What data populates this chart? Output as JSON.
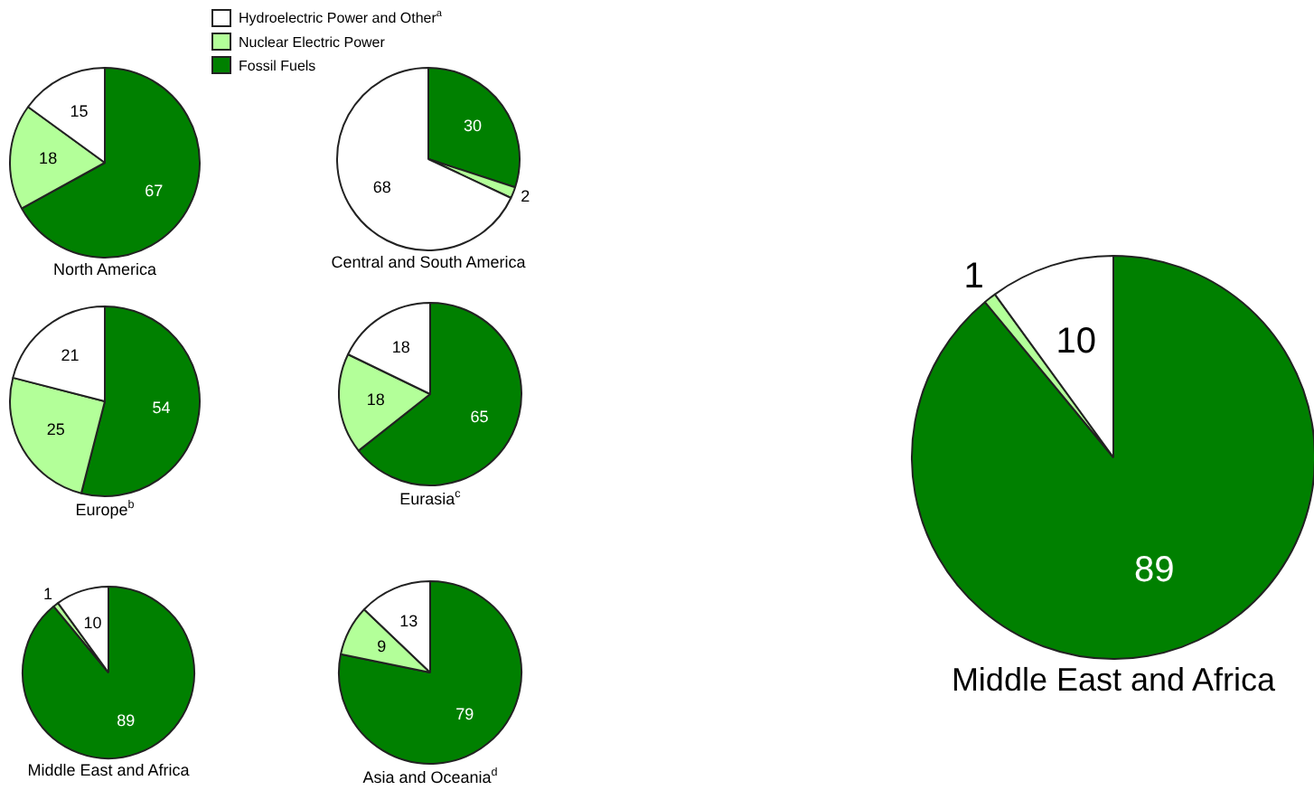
{
  "chart_data": [
    {
      "type": "pie",
      "title": "North America",
      "categories": [
        "Fossil Fuels",
        "Nuclear Electric Power",
        "Hydroelectric Power and Other$^{a}$"
      ],
      "values": [
        67,
        18,
        15
      ],
      "colors": [
        "#008000",
        "#b3ff99",
        "#ffffff"
      ],
      "data_labels": true,
      "legend": "top"
    },
    {
      "type": "pie",
      "title": "Central and South America",
      "categories": [
        null,
        null,
        null
      ],
      "values": [
        30,
        2,
        68
      ],
      "colors": [
        "#008000",
        "#b3ff99",
        "#ffffff"
      ],
      "data_labels": true
    },
    {
      "type": "pie",
      "title": "Europe$^{b}$",
      "categories": [
        null,
        null,
        null
      ],
      "values": [
        54,
        25,
        21
      ],
      "colors": [
        "#008000",
        "#b3ff99",
        "#ffffff"
      ],
      "data_labels": true
    },
    {
      "type": "pie",
      "title": "Eurasia$^{c}$",
      "categories": [
        null,
        null,
        null
      ],
      "values": [
        65,
        18,
        18
      ],
      "colors": [
        "#008000",
        "#b3ff99",
        "#ffffff"
      ],
      "data_labels": true
    },
    {
      "type": "pie",
      "title": "Middle East and Africa",
      "categories": [
        null,
        null,
        null
      ],
      "values": [
        89,
        1,
        10
      ],
      "colors": [
        "#008000",
        "#b3ff99",
        "#ffffff"
      ],
      "data_labels": true
    },
    {
      "type": "pie",
      "title": "Asia and Oceania$^{d}$",
      "categories": [
        null,
        null,
        null
      ],
      "values": [
        79,
        9,
        13
      ],
      "colors": [
        "#008000",
        "#b3ff99",
        "#ffffff"
      ],
      "data_labels": true
    },
    {
      "type": "pie",
      "title": "Middle East and Africa",
      "categories": [
        null,
        null,
        null
      ],
      "values": [
        89,
        1,
        10
      ],
      "colors": [
        "#008000",
        "#b3ff99",
        "#ffffff"
      ],
      "data_labels": true
    }
  ]
}
